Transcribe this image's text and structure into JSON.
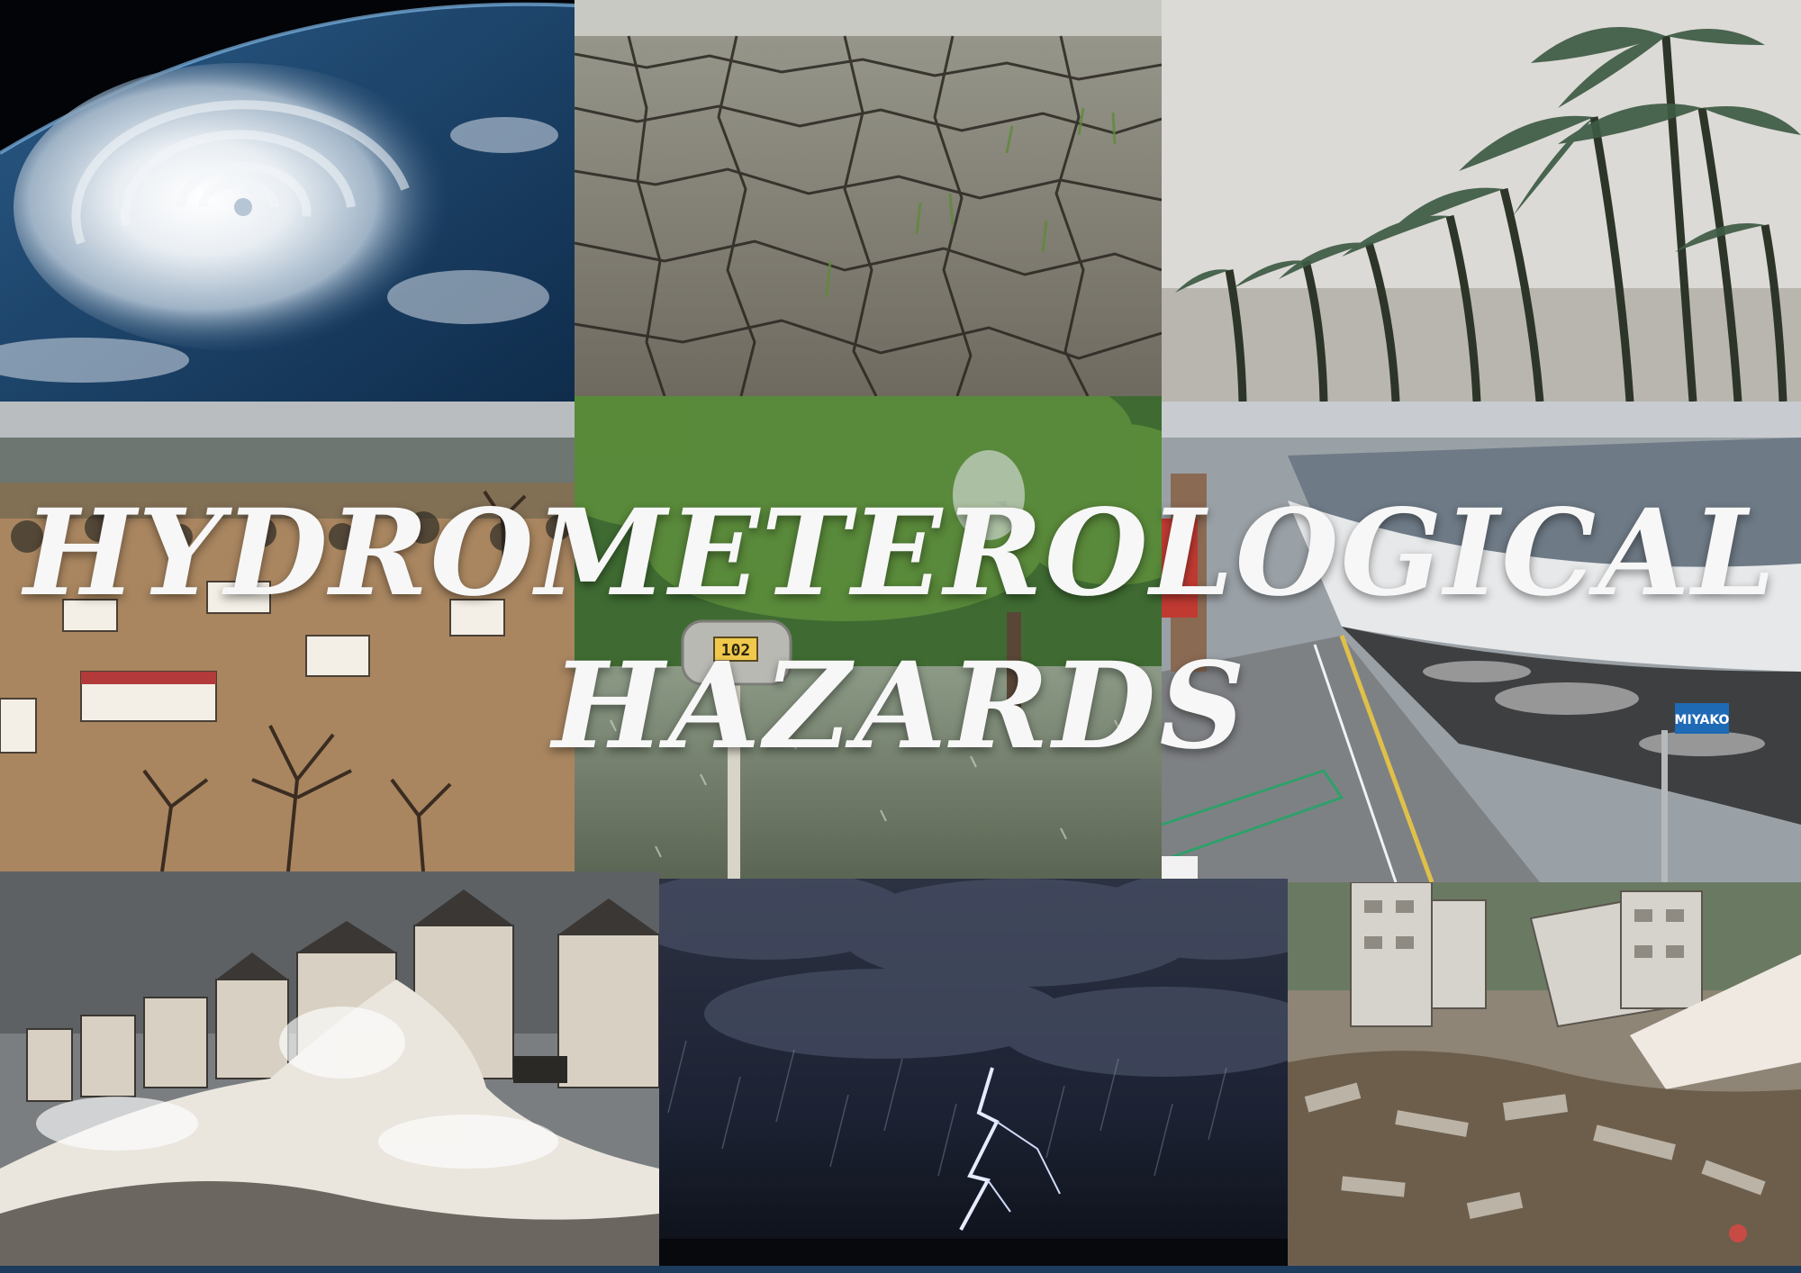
{
  "title": {
    "line1": "HYDROMETEROLOGICAL",
    "line2": "HAZARDS"
  },
  "mailbox_number": "102",
  "street_sign": "MIYAKO",
  "colors": {
    "title_text": "#f7f7f7",
    "ocean": "#1d3b5c",
    "flood_water": "#a98660",
    "storm_sky": "#1c2233"
  }
}
